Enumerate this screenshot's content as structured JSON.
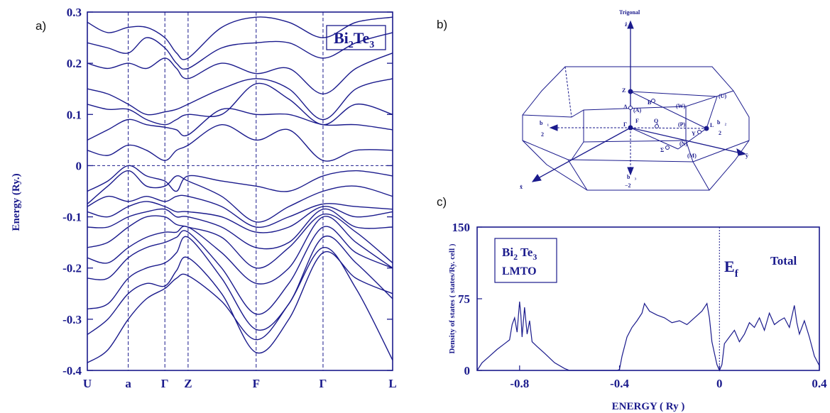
{
  "panels": {
    "a": "a)",
    "b": "b)",
    "c": "c)"
  },
  "chart_data": [
    {
      "type": "line",
      "panel": "a",
      "title_parts": {
        "base1": "Bi",
        "sub1": "2",
        "base2": "Te",
        "sub2": "3"
      },
      "ylabel": "Energy (Ry.)",
      "xlabel": "",
      "ylim": [
        -0.4,
        0.3
      ],
      "yticks": [
        "0.3",
        "0.2",
        "0.1",
        "0",
        "-0.1",
        "-0.2",
        "-0.3",
        "-0.4"
      ],
      "ytick_values": [
        0.3,
        0.2,
        0.1,
        0,
        -0.1,
        -0.2,
        -0.3,
        -0.4
      ],
      "k_points": [
        "U",
        "a",
        "Γ",
        "Z",
        "F",
        "Γ",
        "L"
      ],
      "k_positions": [
        0,
        0.134,
        0.254,
        0.33,
        0.553,
        0.772,
        1.0
      ],
      "fermi_level": 0,
      "x_samples": [
        0,
        0.067,
        0.134,
        0.194,
        0.254,
        0.292,
        0.33,
        0.44,
        0.553,
        0.66,
        0.772,
        0.88,
        1.0
      ],
      "series": [
        {
          "values": [
            -0.385,
            -0.36,
            -0.3,
            -0.26,
            -0.24,
            -0.22,
            -0.215,
            -0.265,
            -0.34,
            -0.27,
            -0.16,
            -0.24,
            -0.38
          ]
        },
        {
          "values": [
            -0.33,
            -0.3,
            -0.25,
            -0.23,
            -0.235,
            -0.205,
            -0.18,
            -0.25,
            -0.365,
            -0.3,
            -0.17,
            -0.22,
            -0.25
          ]
        },
        {
          "values": [
            -0.28,
            -0.27,
            -0.22,
            -0.2,
            -0.19,
            -0.17,
            -0.14,
            -0.22,
            -0.32,
            -0.27,
            -0.14,
            -0.19,
            -0.26
          ]
        },
        {
          "values": [
            -0.22,
            -0.22,
            -0.18,
            -0.16,
            -0.15,
            -0.14,
            -0.13,
            -0.2,
            -0.29,
            -0.23,
            -0.12,
            -0.17,
            -0.2
          ]
        },
        {
          "values": [
            -0.18,
            -0.19,
            -0.16,
            -0.14,
            -0.13,
            -0.13,
            -0.12,
            -0.17,
            -0.23,
            -0.2,
            -0.1,
            -0.15,
            -0.2
          ]
        },
        {
          "values": [
            -0.16,
            -0.15,
            -0.12,
            -0.1,
            -0.1,
            -0.115,
            -0.12,
            -0.14,
            -0.2,
            -0.16,
            -0.095,
            -0.13,
            -0.19
          ]
        },
        {
          "values": [
            -0.12,
            -0.12,
            -0.1,
            -0.09,
            -0.085,
            -0.1,
            -0.1,
            -0.12,
            -0.16,
            -0.15,
            -0.085,
            -0.12,
            -0.12
          ]
        },
        {
          "values": [
            -0.09,
            -0.1,
            -0.08,
            -0.07,
            -0.08,
            -0.09,
            -0.09,
            -0.1,
            -0.13,
            -0.12,
            -0.08,
            -0.1,
            -0.09
          ]
        },
        {
          "values": [
            -0.08,
            -0.06,
            -0.07,
            -0.06,
            -0.07,
            -0.06,
            -0.06,
            -0.08,
            -0.12,
            -0.1,
            -0.075,
            -0.08,
            -0.085
          ]
        },
        {
          "values": [
            -0.075,
            -0.04,
            -0.01,
            -0.04,
            -0.04,
            -0.02,
            -0.03,
            -0.06,
            -0.11,
            -0.08,
            -0.05,
            -0.04,
            -0.06
          ]
        },
        {
          "values": [
            -0.05,
            -0.03,
            0.0,
            -0.02,
            -0.03,
            -0.05,
            -0.02,
            -0.03,
            -0.04,
            -0.05,
            -0.02,
            -0.01,
            -0.02
          ]
        },
        {
          "values": [
            0.03,
            0.02,
            0.04,
            0.03,
            0.01,
            0.03,
            0.04,
            0.08,
            0.05,
            0.07,
            0.01,
            0.03,
            0.03
          ]
        },
        {
          "values": [
            0.05,
            0.07,
            0.09,
            0.08,
            0.075,
            0.07,
            0.06,
            0.11,
            0.1,
            0.1,
            0.08,
            0.08,
            0.07
          ]
        },
        {
          "values": [
            0.12,
            0.11,
            0.11,
            0.09,
            0.08,
            0.09,
            0.1,
            0.1,
            0.16,
            0.13,
            0.08,
            0.12,
            0.1
          ]
        },
        {
          "values": [
            0.15,
            0.14,
            0.12,
            0.1,
            0.105,
            0.11,
            0.12,
            0.15,
            0.17,
            0.15,
            0.09,
            0.15,
            0.17
          ]
        },
        {
          "values": [
            0.2,
            0.19,
            0.2,
            0.19,
            0.21,
            0.19,
            0.17,
            0.2,
            0.18,
            0.19,
            0.14,
            0.19,
            0.22
          ]
        },
        {
          "values": [
            0.24,
            0.23,
            0.22,
            0.25,
            0.23,
            0.2,
            0.19,
            0.23,
            0.24,
            0.24,
            0.21,
            0.24,
            0.26
          ]
        },
        {
          "values": [
            0.28,
            0.26,
            0.27,
            0.27,
            0.25,
            0.22,
            0.21,
            0.27,
            0.29,
            0.28,
            0.25,
            0.28,
            0.29
          ]
        }
      ]
    },
    {
      "type": "line",
      "panel": "c",
      "ylabel": "Density of states ( states/Ry. cell )",
      "xlabel": "ENERGY ( Ry )",
      "xlim": [
        -0.97,
        0.4
      ],
      "ylim": [
        0,
        150
      ],
      "xticks": [
        "-0.8",
        "-0.4",
        "0",
        "0.4"
      ],
      "xtick_values": [
        -0.8,
        -0.4,
        0,
        0.4
      ],
      "yticks": [
        "150",
        "75",
        "0"
      ],
      "ytick_values": [
        150,
        75,
        0
      ],
      "legend_parts": {
        "base1": "Bi",
        "sub1": "2",
        "base2": " Te",
        "sub2": "3",
        "line2": "LMTO"
      },
      "total_label": "Total",
      "fermi_label_parts": {
        "base": "E",
        "sub": "f"
      },
      "series": [
        {
          "name": "Total",
          "x": [
            -0.97,
            -0.95,
            -0.92,
            -0.89,
            -0.86,
            -0.84,
            -0.83,
            -0.82,
            -0.81,
            -0.8,
            -0.795,
            -0.79,
            -0.78,
            -0.77,
            -0.76,
            -0.75,
            -0.73,
            -0.7,
            -0.66,
            -0.62,
            -0.6,
            -0.55,
            -0.5,
            -0.45,
            -0.41,
            -0.4,
            -0.39,
            -0.37,
            -0.35,
            -0.33,
            -0.31,
            -0.3,
            -0.28,
            -0.25,
            -0.22,
            -0.19,
            -0.16,
            -0.13,
            -0.1,
            -0.07,
            -0.05,
            -0.04,
            -0.03,
            -0.02,
            -0.01,
            0.0,
            0.01,
            0.02,
            0.04,
            0.06,
            0.08,
            0.1,
            0.12,
            0.14,
            0.16,
            0.18,
            0.2,
            0.22,
            0.24,
            0.26,
            0.28,
            0.3,
            0.31,
            0.32,
            0.34,
            0.36,
            0.38,
            0.4
          ],
          "y": [
            0,
            8,
            15,
            22,
            28,
            32,
            48,
            55,
            40,
            72,
            58,
            35,
            66,
            38,
            52,
            30,
            25,
            18,
            8,
            2,
            0,
            0,
            0,
            0,
            0,
            1,
            15,
            35,
            45,
            52,
            60,
            70,
            62,
            58,
            55,
            50,
            52,
            48,
            55,
            62,
            70,
            55,
            30,
            18,
            6,
            0,
            6,
            28,
            35,
            42,
            30,
            38,
            50,
            45,
            55,
            42,
            60,
            48,
            52,
            55,
            45,
            68,
            50,
            38,
            52,
            35,
            15,
            5
          ]
        }
      ]
    }
  ],
  "bz": {
    "title": "Trigonal",
    "axis_z": "ẑ",
    "axis_x": "x̂",
    "axis_y": "ŷ",
    "labels": {
      "Z": "Z",
      "B": "B",
      "Lambda": "Λ",
      "A": "(A)",
      "Gamma": "Γ",
      "F": "F",
      "Q": "Q",
      "P": "(P)",
      "L": "L",
      "W": "(W)",
      "U": "(U)",
      "N": "(N)",
      "Sigma": "Σ",
      "M": "(M)",
      "Y": "Y",
      "b1": "b⃗₁",
      "b1_den": "2",
      "b2": "b⃗₂",
      "b2_den": "2",
      "b3": "b⃗₃",
      "b3_den": "−2"
    }
  }
}
